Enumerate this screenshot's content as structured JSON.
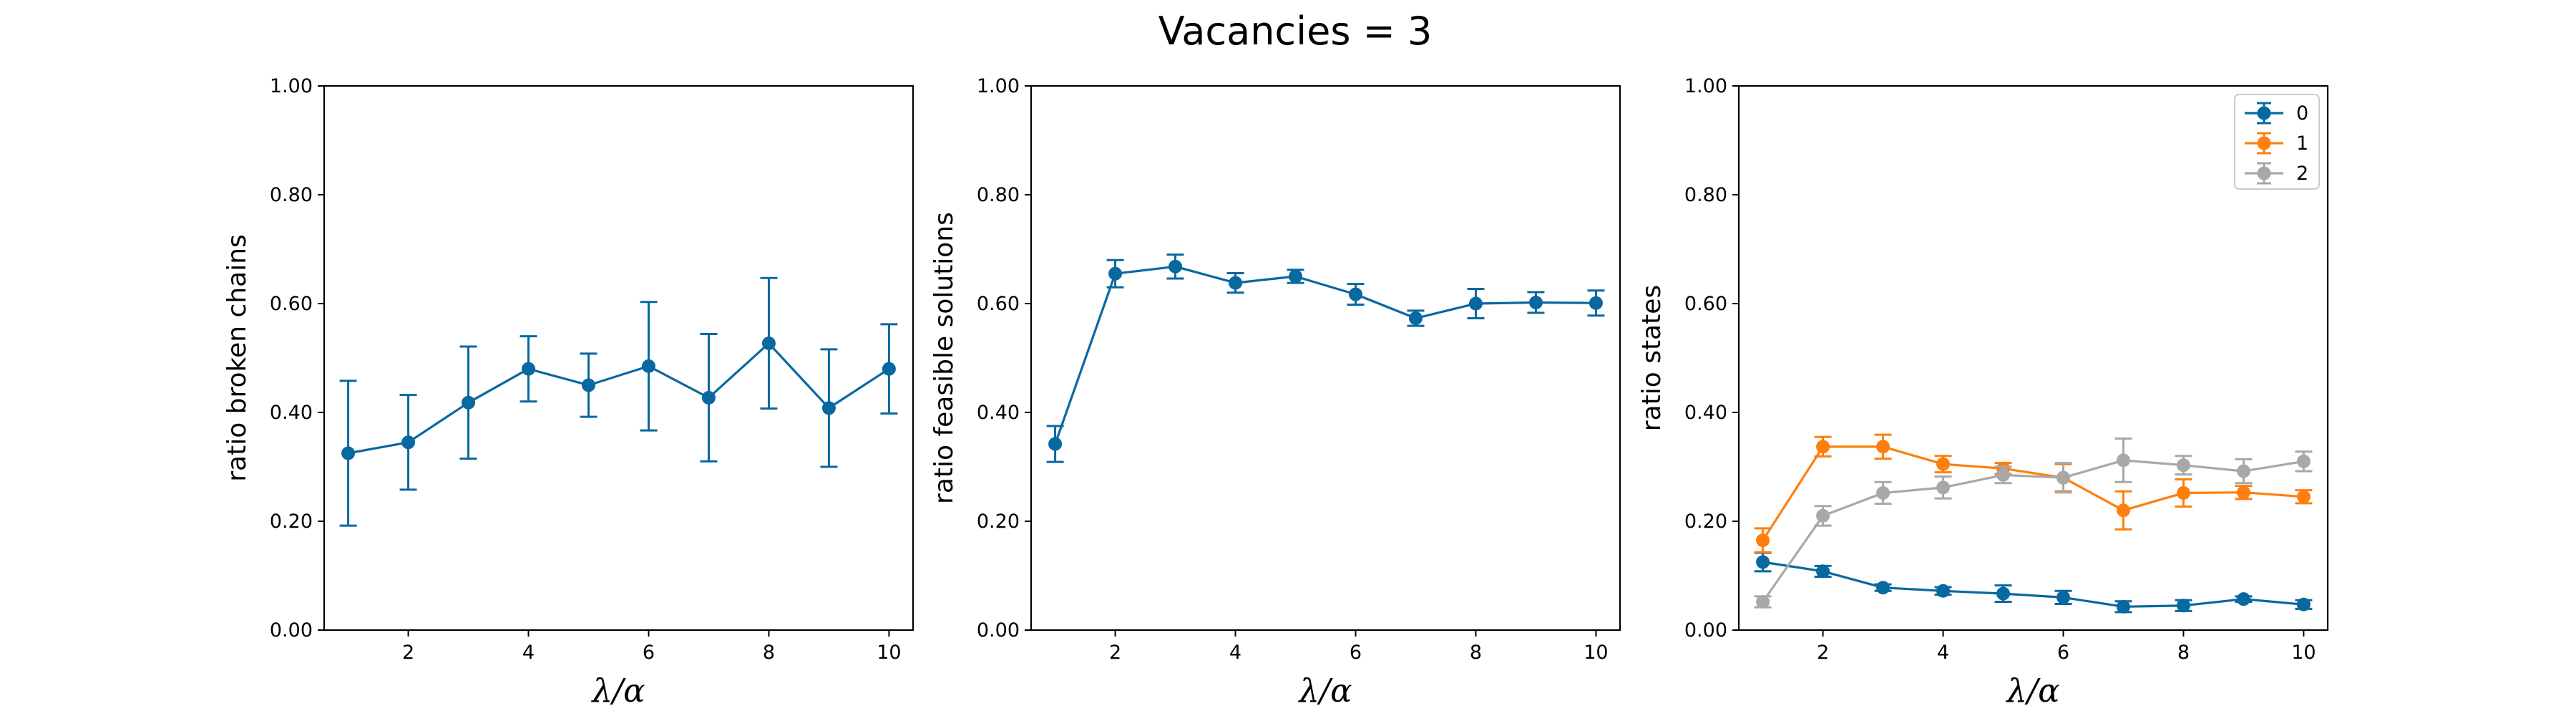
{
  "figure": {
    "title": "Vacancies = 3"
  },
  "chart_data": [
    {
      "type": "line",
      "title": "",
      "xlabel": "λ/α",
      "ylabel": "ratio broken chains",
      "xlim": [
        0.6,
        10.4
      ],
      "ylim": [
        0,
        1
      ],
      "xticks": [
        2,
        4,
        6,
        8,
        10
      ],
      "yticks": [
        "0.00",
        "0.20",
        "0.40",
        "0.60",
        "0.80",
        "1.00"
      ],
      "grid": false,
      "series": [
        {
          "color": "#0868a0",
          "x": [
            1,
            2,
            3,
            4,
            5,
            6,
            7,
            8,
            9,
            10
          ],
          "y": [
            0.325,
            0.345,
            0.418,
            0.48,
            0.45,
            0.485,
            0.427,
            0.527,
            0.408,
            0.48
          ],
          "err": [
            0.133,
            0.087,
            0.103,
            0.06,
            0.058,
            0.118,
            0.117,
            0.12,
            0.108,
            0.082
          ]
        }
      ]
    },
    {
      "type": "line",
      "title": "",
      "xlabel": "λ/α",
      "ylabel": "ratio feasible solutions",
      "xlim": [
        0.6,
        10.4
      ],
      "ylim": [
        0,
        1
      ],
      "xticks": [
        2,
        4,
        6,
        8,
        10
      ],
      "yticks": [
        "0.00",
        "0.20",
        "0.40",
        "0.60",
        "0.80",
        "1.00"
      ],
      "grid": false,
      "series": [
        {
          "color": "#0868a0",
          "x": [
            1,
            2,
            3,
            4,
            5,
            6,
            7,
            8,
            9,
            10
          ],
          "y": [
            0.342,
            0.655,
            0.668,
            0.638,
            0.65,
            0.617,
            0.573,
            0.6,
            0.602,
            0.601
          ],
          "err": [
            0.033,
            0.025,
            0.022,
            0.018,
            0.012,
            0.019,
            0.014,
            0.027,
            0.019,
            0.023
          ]
        }
      ]
    },
    {
      "type": "line",
      "title": "",
      "xlabel": "λ/α",
      "ylabel": "ratio states",
      "xlim": [
        0.6,
        10.4
      ],
      "ylim": [
        0,
        1
      ],
      "xticks": [
        2,
        4,
        6,
        8,
        10
      ],
      "yticks": [
        "0.00",
        "0.20",
        "0.40",
        "0.60",
        "0.80",
        "1.00"
      ],
      "grid": false,
      "legend": "top-right",
      "series": [
        {
          "name": "0",
          "color": "#0868a0",
          "x": [
            1,
            2,
            3,
            4,
            5,
            6,
            7,
            8,
            9,
            10
          ],
          "y": [
            0.125,
            0.108,
            0.078,
            0.072,
            0.067,
            0.06,
            0.043,
            0.045,
            0.057,
            0.047
          ],
          "err": [
            0.017,
            0.01,
            0.006,
            0.007,
            0.015,
            0.012,
            0.01,
            0.01,
            0.005,
            0.008
          ]
        },
        {
          "name": "1",
          "color": "#ff7f0e",
          "x": [
            1,
            2,
            3,
            4,
            5,
            6,
            7,
            8,
            9,
            10
          ],
          "y": [
            0.165,
            0.337,
            0.337,
            0.305,
            0.297,
            0.28,
            0.22,
            0.252,
            0.253,
            0.245
          ],
          "err": [
            0.022,
            0.018,
            0.022,
            0.015,
            0.01,
            0.025,
            0.035,
            0.025,
            0.012,
            0.012
          ]
        },
        {
          "name": "2",
          "color": "#a8a8a8",
          "x": [
            1,
            2,
            3,
            4,
            5,
            6,
            7,
            8,
            9,
            10
          ],
          "y": [
            0.052,
            0.21,
            0.252,
            0.262,
            0.285,
            0.28,
            0.312,
            0.303,
            0.292,
            0.31
          ],
          "err": [
            0.01,
            0.018,
            0.02,
            0.02,
            0.015,
            0.027,
            0.04,
            0.017,
            0.022,
            0.018
          ]
        }
      ]
    }
  ]
}
